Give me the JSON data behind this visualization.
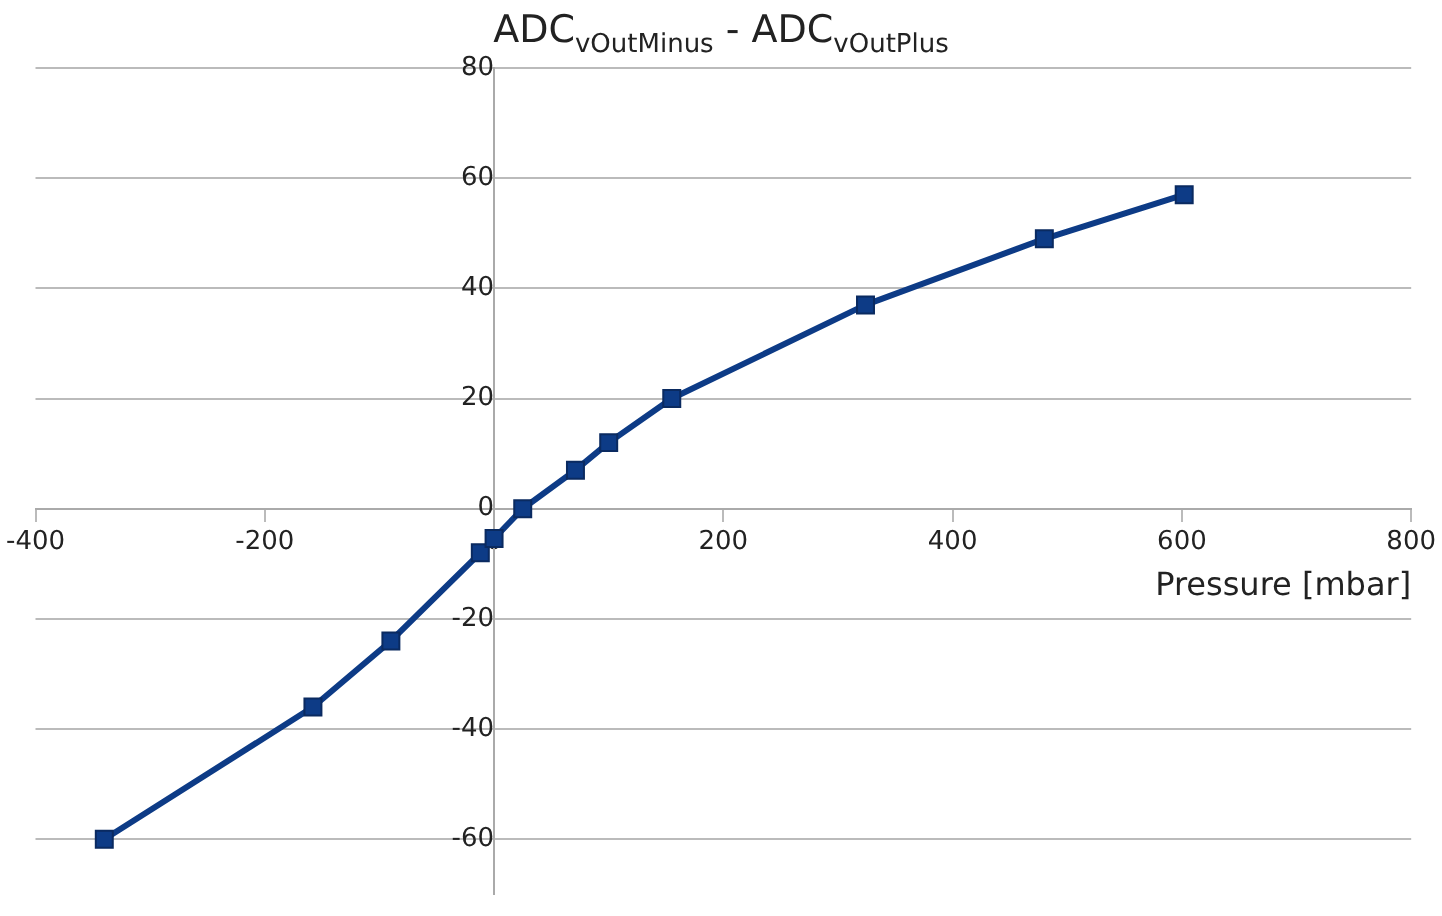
{
  "chart_data": {
    "type": "line",
    "title": "ADC$_{vOutMinus}$ - ADC$_{vOutPlus}$",
    "xlabel": "Pressure [mbar]",
    "x": [
      -340,
      -158,
      -90,
      -12,
      0,
      25,
      71,
      100,
      155,
      324,
      480,
      602
    ],
    "series": [
      {
        "color": "#0d3b86",
        "values": [
          -60,
          -36,
          -24,
          -8,
          -5.4,
          0,
          7,
          12,
          20,
          37,
          49,
          57
        ]
      }
    ],
    "xlim": [
      -400,
      800
    ],
    "xticks": [
      -400,
      -200,
      0,
      200,
      400,
      600,
      800
    ],
    "ylim": [
      -70,
      80
    ],
    "yticks": [
      -60,
      -40,
      -20,
      0,
      20,
      40,
      60,
      80
    ],
    "grid": "y",
    "legend": false,
    "marker": "square",
    "line_style": "solid"
  }
}
